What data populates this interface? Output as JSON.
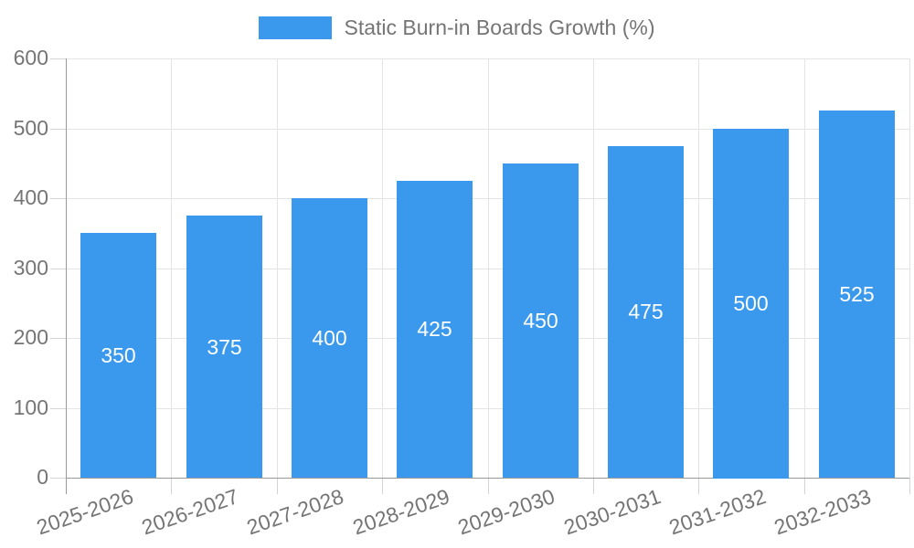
{
  "legend": {
    "label": "Static Burn-in Boards Growth (%)"
  },
  "chart_data": {
    "type": "bar",
    "title": "Static Burn-in Boards Growth (%)",
    "categories": [
      "2025-2026",
      "2026-2027",
      "2027-2028",
      "2028-2029",
      "2029-2030",
      "2030-2031",
      "2031-2032",
      "2032-2033"
    ],
    "values": [
      350,
      375,
      400,
      425,
      450,
      475,
      500,
      525
    ],
    "xlabel": "",
    "ylabel": "",
    "ylim": [
      0,
      600
    ],
    "yticks": [
      0,
      100,
      200,
      300,
      400,
      500,
      600
    ],
    "grid": true,
    "legend_position": "top",
    "value_labels": "inside-center",
    "xtick_rotation_deg": -19
  },
  "colors": {
    "bar": "#3A99EC",
    "grid": "#E4E4E4",
    "axis": "#999999",
    "tick": "#D4D4D4",
    "text": "#757575",
    "value_label": "#FFFFFF",
    "background": "#FFFFFF"
  }
}
